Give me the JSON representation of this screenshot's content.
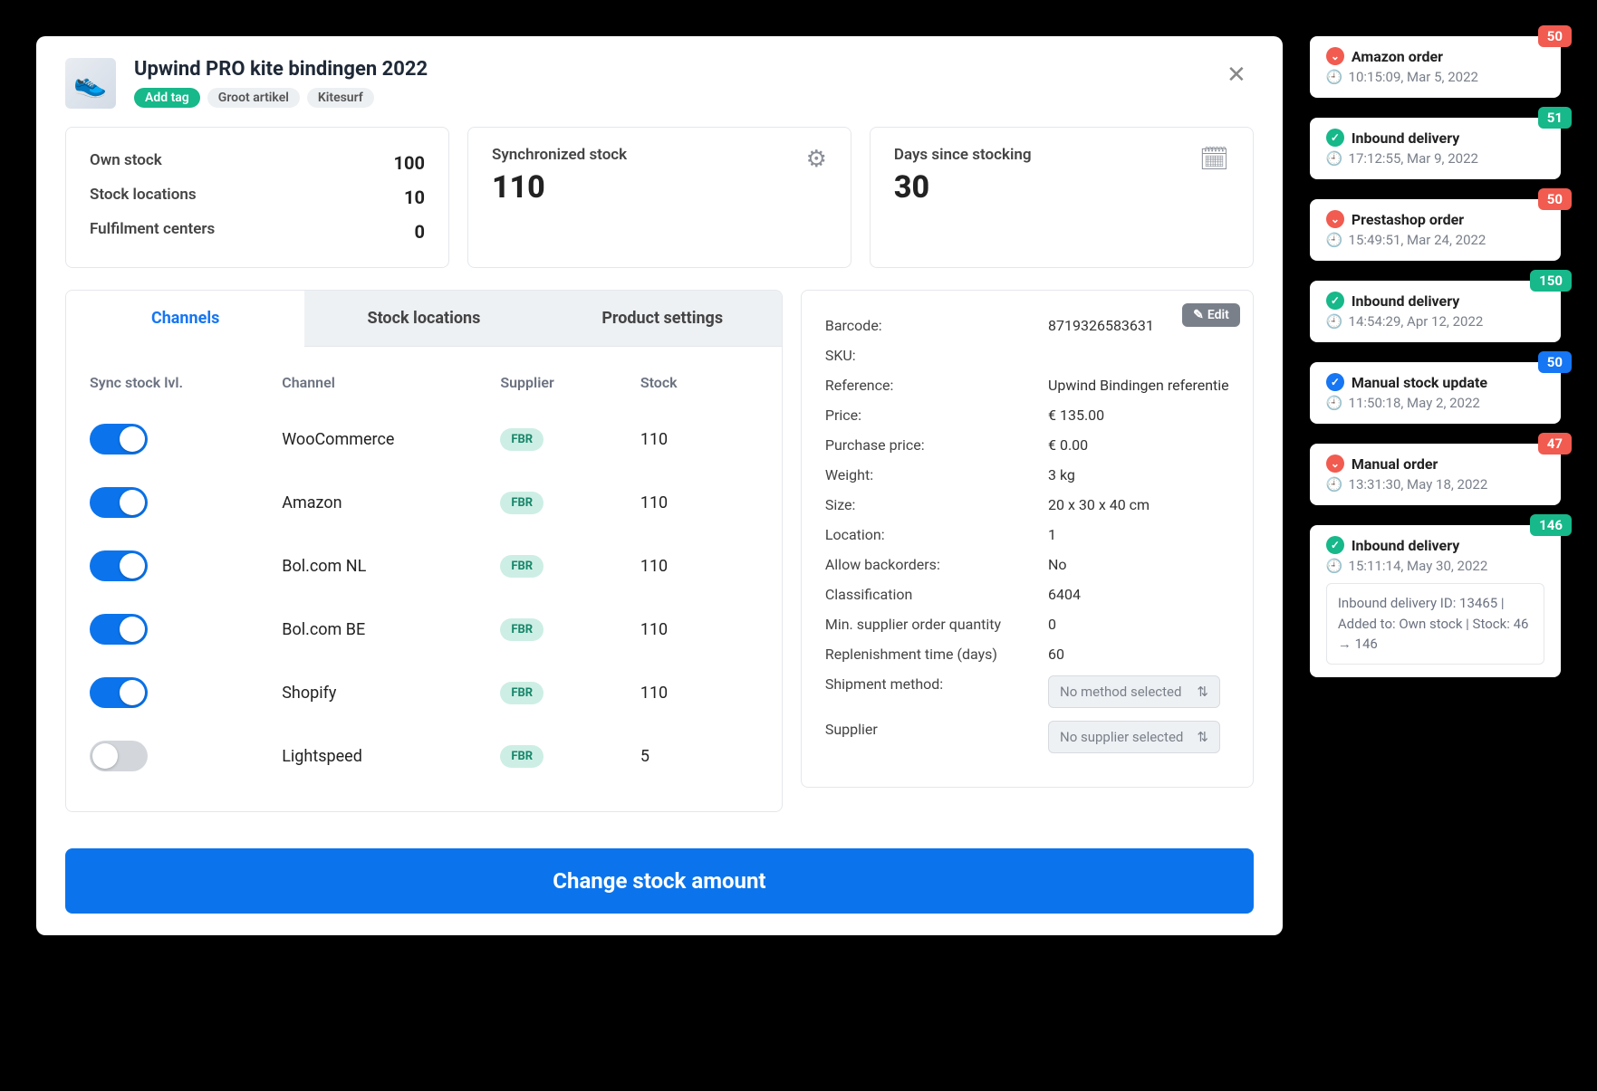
{
  "colors": {
    "accent_blue": "#0b74ec",
    "link_blue": "#1676f3",
    "green": "#17b88a",
    "red": "#f15b50",
    "grey_bg": "#eef1f4",
    "border": "#e4e7eb",
    "text_muted": "#7a808a"
  },
  "header": {
    "title": "Upwind PRO kite bindingen 2022",
    "add_tag_label": "Add tag",
    "tags": [
      "Groot artikel",
      "Kitesurf"
    ]
  },
  "summary": {
    "own_stock_label": "Own stock",
    "own_stock_val": "100",
    "stock_locations_label": "Stock locations",
    "stock_locations_val": "10",
    "fulfilment_label": "Fulfilment centers",
    "fulfilment_val": "0",
    "sync_label": "Synchronized stock",
    "sync_val": "110",
    "days_label": "Days since stocking",
    "days_val": "30"
  },
  "tabs": {
    "channels": "Channels",
    "stock_locations": "Stock locations",
    "product_settings": "Product settings"
  },
  "channels_head": {
    "sync": "Sync stock lvl.",
    "channel": "Channel",
    "supplier": "Supplier",
    "stock": "Stock"
  },
  "channels": [
    {
      "on": true,
      "name": "WooCommerce",
      "supplier": "FBR",
      "stock": "110"
    },
    {
      "on": true,
      "name": "Amazon",
      "supplier": "FBR",
      "stock": "110"
    },
    {
      "on": true,
      "name": "Bol.com NL",
      "supplier": "FBR",
      "stock": "110"
    },
    {
      "on": true,
      "name": "Bol.com BE",
      "supplier": "FBR",
      "stock": "110"
    },
    {
      "on": true,
      "name": "Shopify",
      "supplier": "FBR",
      "stock": "110"
    },
    {
      "on": false,
      "name": "Lightspeed",
      "supplier": "FBR",
      "stock": "5"
    }
  ],
  "details": {
    "edit_label": "Edit",
    "barcode_k": "Barcode:",
    "barcode_v": "8719326583631",
    "sku_k": "SKU:",
    "sku_v": "",
    "ref_k": "Reference:",
    "ref_v": "Upwind Bindingen referentie",
    "price_k": "Price:",
    "price_v": "€ 135.00",
    "purchase_k": "Purchase price:",
    "purchase_v": "€ 0.00",
    "weight_k": "Weight:",
    "weight_v": "3 kg",
    "size_k": "Size:",
    "size_v": "20 x 30 x 40 cm",
    "location_k": "Location:",
    "location_v": "1",
    "backorders_k": "Allow backorders:",
    "backorders_v": "No",
    "class_k": "Classification",
    "class_v": "6404",
    "minq_k": "Min. supplier order quantity",
    "minq_v": "0",
    "replen_k": "Replenishment time (days)",
    "replen_v": "60",
    "shipment_k": "Shipment method:",
    "shipment_v": "No method selected",
    "supplier_k": "Supplier",
    "supplier_v": "No supplier selected"
  },
  "footer": {
    "change_stock": "Change stock amount"
  },
  "event_badge_colors": {
    "red": "#f15b50",
    "green": "#17b88a",
    "blue": "#1676f3"
  },
  "events": [
    {
      "title": "Amazon order",
      "ic": "red",
      "time": "10:15:09, Mar 5, 2022",
      "badge": "50",
      "bcol": "red"
    },
    {
      "title": "Inbound delivery",
      "ic": "green",
      "time": "17:12:55, Mar 9, 2022",
      "badge": "51",
      "bcol": "green"
    },
    {
      "title": "Prestashop order",
      "ic": "red",
      "time": "15:49:51, Mar 24, 2022",
      "badge": "50",
      "bcol": "red"
    },
    {
      "title": "Inbound delivery",
      "ic": "green",
      "time": "14:54:29, Apr 12, 2022",
      "badge": "150",
      "bcol": "green"
    },
    {
      "title": "Manual stock update",
      "ic": "blue",
      "time": "11:50:18, May 2, 2022",
      "badge": "50",
      "bcol": "blue"
    },
    {
      "title": "Manual order",
      "ic": "red",
      "time": "13:31:30, May 18, 2022",
      "badge": "47",
      "bcol": "red"
    },
    {
      "title": "Inbound delivery",
      "ic": "green",
      "time": "15:11:14, May 30, 2022",
      "badge": "146",
      "bcol": "green",
      "detail": "Inbound delivery ID: 13465 | Added to: Own stock | Stock: 46 → 146"
    }
  ]
}
